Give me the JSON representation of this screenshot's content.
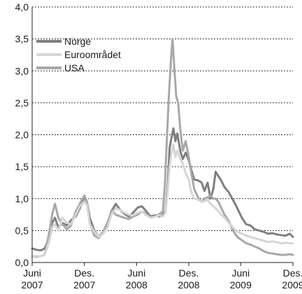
{
  "chart_data": {
    "type": "line",
    "ylim": [
      0,
      4.0
    ],
    "yticks": [
      {
        "value": 0.0,
        "label": "0,0"
      },
      {
        "value": 0.5,
        "label": "0,5"
      },
      {
        "value": 1.0,
        "label": "1,0"
      },
      {
        "value": 1.5,
        "label": "1,5"
      },
      {
        "value": 2.0,
        "label": "2,0"
      },
      {
        "value": 2.5,
        "label": "2,5"
      },
      {
        "value": 3.0,
        "label": "3,0"
      },
      {
        "value": 3.5,
        "label": "3,5"
      },
      {
        "value": 4.0,
        "label": "4,0"
      }
    ],
    "xlim": [
      "2007-06",
      "2009-12"
    ],
    "xticks": [
      {
        "value": "2007-06",
        "line1": "Juni",
        "line2": "2007"
      },
      {
        "value": "2007-12",
        "line1": "Des.",
        "line2": "2007"
      },
      {
        "value": "2008-06",
        "line1": "Juni",
        "line2": "2008"
      },
      {
        "value": "2008-12",
        "line1": "Des.",
        "line2": "2008"
      },
      {
        "value": "2009-06",
        "line1": "Juni",
        "line2": "2009"
      },
      {
        "value": "2009-12",
        "line1": "Des.",
        "line2": "2009"
      }
    ],
    "grid": "horizontal-dotted",
    "legend_position": "top-left",
    "series": [
      {
        "name": "Norge",
        "color": "#7f7f7f",
        "points": [
          [
            "2007-06-01",
            0.22
          ],
          [
            "2007-06-15",
            0.2
          ],
          [
            "2007-07-01",
            0.19
          ],
          [
            "2007-07-15",
            0.22
          ],
          [
            "2007-08-01",
            0.4
          ],
          [
            "2007-08-10",
            0.62
          ],
          [
            "2007-08-20",
            0.7
          ],
          [
            "2007-09-01",
            0.55
          ],
          [
            "2007-09-15",
            0.62
          ],
          [
            "2007-10-01",
            0.58
          ],
          [
            "2007-10-15",
            0.66
          ],
          [
            "2007-11-01",
            0.72
          ],
          [
            "2007-11-15",
            0.85
          ],
          [
            "2007-12-01",
            1.02
          ],
          [
            "2007-12-10",
            0.95
          ],
          [
            "2007-12-20",
            0.7
          ],
          [
            "2008-01-05",
            0.5
          ],
          [
            "2008-01-20",
            0.4
          ],
          [
            "2008-02-05",
            0.48
          ],
          [
            "2008-02-20",
            0.62
          ],
          [
            "2008-03-05",
            0.8
          ],
          [
            "2008-03-20",
            0.92
          ],
          [
            "2008-04-05",
            0.82
          ],
          [
            "2008-04-20",
            0.76
          ],
          [
            "2008-05-05",
            0.72
          ],
          [
            "2008-05-20",
            0.78
          ],
          [
            "2008-06-05",
            0.86
          ],
          [
            "2008-06-20",
            0.88
          ],
          [
            "2008-07-05",
            0.8
          ],
          [
            "2008-07-20",
            0.72
          ],
          [
            "2008-08-05",
            0.74
          ],
          [
            "2008-08-20",
            0.72
          ],
          [
            "2008-09-01",
            0.75
          ],
          [
            "2008-09-10",
            0.8
          ],
          [
            "2008-09-18",
            1.2
          ],
          [
            "2008-09-25",
            1.8
          ],
          [
            "2008-10-01",
            1.95
          ],
          [
            "2008-10-08",
            2.1
          ],
          [
            "2008-10-15",
            1.9
          ],
          [
            "2008-10-22",
            2.02
          ],
          [
            "2008-11-01",
            1.75
          ],
          [
            "2008-11-10",
            1.62
          ],
          [
            "2008-11-20",
            1.72
          ],
          [
            "2008-12-01",
            1.6
          ],
          [
            "2008-12-10",
            1.45
          ],
          [
            "2008-12-20",
            1.3
          ],
          [
            "2009-01-05",
            1.28
          ],
          [
            "2009-01-15",
            1.25
          ],
          [
            "2009-01-25",
            1.12
          ],
          [
            "2009-02-05",
            1.25
          ],
          [
            "2009-02-15",
            1.0
          ],
          [
            "2009-02-25",
            1.15
          ],
          [
            "2009-03-05",
            1.42
          ],
          [
            "2009-03-15",
            1.35
          ],
          [
            "2009-03-25",
            1.28
          ],
          [
            "2009-04-05",
            1.18
          ],
          [
            "2009-04-20",
            1.1
          ],
          [
            "2009-05-05",
            0.98
          ],
          [
            "2009-05-20",
            0.85
          ],
          [
            "2009-06-05",
            0.7
          ],
          [
            "2009-06-20",
            0.6
          ],
          [
            "2009-07-05",
            0.58
          ],
          [
            "2009-07-20",
            0.52
          ],
          [
            "2009-08-05",
            0.5
          ],
          [
            "2009-08-20",
            0.48
          ],
          [
            "2009-09-05",
            0.45
          ],
          [
            "2009-09-20",
            0.46
          ],
          [
            "2009-10-05",
            0.44
          ],
          [
            "2009-10-20",
            0.43
          ],
          [
            "2009-11-05",
            0.42
          ],
          [
            "2009-11-20",
            0.45
          ],
          [
            "2009-12-01",
            0.4
          ]
        ]
      },
      {
        "name": "Euroområdet",
        "color": "#d6d6d6",
        "points": [
          [
            "2007-06-01",
            0.1
          ],
          [
            "2007-06-15",
            0.1
          ],
          [
            "2007-07-01",
            0.1
          ],
          [
            "2007-07-15",
            0.12
          ],
          [
            "2007-08-01",
            0.35
          ],
          [
            "2007-08-10",
            0.55
          ],
          [
            "2007-08-20",
            0.6
          ],
          [
            "2007-09-01",
            0.5
          ],
          [
            "2007-09-15",
            0.7
          ],
          [
            "2007-10-01",
            0.62
          ],
          [
            "2007-10-15",
            0.6
          ],
          [
            "2007-11-01",
            0.75
          ],
          [
            "2007-11-15",
            0.88
          ],
          [
            "2007-12-01",
            0.95
          ],
          [
            "2007-12-10",
            0.9
          ],
          [
            "2007-12-20",
            0.6
          ],
          [
            "2008-01-05",
            0.48
          ],
          [
            "2008-01-20",
            0.4
          ],
          [
            "2008-02-05",
            0.45
          ],
          [
            "2008-02-20",
            0.55
          ],
          [
            "2008-03-05",
            0.75
          ],
          [
            "2008-03-20",
            0.85
          ],
          [
            "2008-04-05",
            0.82
          ],
          [
            "2008-04-20",
            0.78
          ],
          [
            "2008-05-05",
            0.75
          ],
          [
            "2008-05-20",
            0.74
          ],
          [
            "2008-06-05",
            0.78
          ],
          [
            "2008-06-20",
            0.8
          ],
          [
            "2008-07-05",
            0.74
          ],
          [
            "2008-07-20",
            0.7
          ],
          [
            "2008-08-05",
            0.72
          ],
          [
            "2008-08-20",
            0.74
          ],
          [
            "2008-09-01",
            0.72
          ],
          [
            "2008-09-10",
            0.78
          ],
          [
            "2008-09-18",
            1.1
          ],
          [
            "2008-09-25",
            1.5
          ],
          [
            "2008-10-01",
            1.7
          ],
          [
            "2008-10-08",
            1.85
          ],
          [
            "2008-10-15",
            1.65
          ],
          [
            "2008-10-22",
            1.75
          ],
          [
            "2008-11-01",
            1.62
          ],
          [
            "2008-11-10",
            1.55
          ],
          [
            "2008-11-20",
            1.4
          ],
          [
            "2008-12-01",
            1.3
          ],
          [
            "2008-12-10",
            1.1
          ],
          [
            "2008-12-20",
            1.0
          ],
          [
            "2009-01-05",
            0.98
          ],
          [
            "2009-01-15",
            0.95
          ],
          [
            "2009-01-25",
            0.96
          ],
          [
            "2009-02-05",
            0.98
          ],
          [
            "2009-02-15",
            0.92
          ],
          [
            "2009-02-25",
            0.88
          ],
          [
            "2009-03-05",
            0.85
          ],
          [
            "2009-03-15",
            0.8
          ],
          [
            "2009-03-25",
            0.75
          ],
          [
            "2009-04-05",
            0.7
          ],
          [
            "2009-04-20",
            0.62
          ],
          [
            "2009-05-05",
            0.55
          ],
          [
            "2009-05-20",
            0.48
          ],
          [
            "2009-06-05",
            0.45
          ],
          [
            "2009-06-20",
            0.42
          ],
          [
            "2009-07-05",
            0.4
          ],
          [
            "2009-07-20",
            0.38
          ],
          [
            "2009-08-05",
            0.36
          ],
          [
            "2009-08-20",
            0.34
          ],
          [
            "2009-09-05",
            0.32
          ],
          [
            "2009-09-20",
            0.33
          ],
          [
            "2009-10-05",
            0.32
          ],
          [
            "2009-10-20",
            0.3
          ],
          [
            "2009-11-05",
            0.31
          ],
          [
            "2009-11-20",
            0.3
          ],
          [
            "2009-12-01",
            0.3
          ]
        ]
      },
      {
        "name": "USA",
        "color": "#a8a8a8",
        "points": [
          [
            "2007-06-01",
            0.1
          ],
          [
            "2007-06-15",
            0.09
          ],
          [
            "2007-07-01",
            0.1
          ],
          [
            "2007-07-15",
            0.12
          ],
          [
            "2007-08-01",
            0.5
          ],
          [
            "2007-08-10",
            0.75
          ],
          [
            "2007-08-20",
            0.92
          ],
          [
            "2007-09-01",
            0.7
          ],
          [
            "2007-09-15",
            0.6
          ],
          [
            "2007-10-01",
            0.52
          ],
          [
            "2007-10-15",
            0.58
          ],
          [
            "2007-11-01",
            0.8
          ],
          [
            "2007-11-15",
            0.92
          ],
          [
            "2007-12-01",
            1.05
          ],
          [
            "2007-12-10",
            0.95
          ],
          [
            "2007-12-20",
            0.62
          ],
          [
            "2008-01-05",
            0.42
          ],
          [
            "2008-01-20",
            0.38
          ],
          [
            "2008-02-05",
            0.48
          ],
          [
            "2008-02-20",
            0.6
          ],
          [
            "2008-03-05",
            0.82
          ],
          [
            "2008-03-20",
            0.75
          ],
          [
            "2008-04-05",
            0.72
          ],
          [
            "2008-04-20",
            0.7
          ],
          [
            "2008-05-05",
            0.68
          ],
          [
            "2008-05-20",
            0.72
          ],
          [
            "2008-06-05",
            0.75
          ],
          [
            "2008-06-20",
            0.8
          ],
          [
            "2008-07-05",
            0.76
          ],
          [
            "2008-07-20",
            0.7
          ],
          [
            "2008-08-05",
            0.72
          ],
          [
            "2008-08-20",
            0.76
          ],
          [
            "2008-09-01",
            0.8
          ],
          [
            "2008-09-08",
            1.2
          ],
          [
            "2008-09-15",
            1.9
          ],
          [
            "2008-09-22",
            2.6
          ],
          [
            "2008-09-30",
            3.2
          ],
          [
            "2008-10-05",
            3.5
          ],
          [
            "2008-10-12",
            3.0
          ],
          [
            "2008-10-18",
            2.6
          ],
          [
            "2008-10-25",
            2.5
          ],
          [
            "2008-11-01",
            2.1
          ],
          [
            "2008-11-10",
            1.75
          ],
          [
            "2008-11-20",
            1.9
          ],
          [
            "2008-12-01",
            1.65
          ],
          [
            "2008-12-10",
            1.4
          ],
          [
            "2008-12-20",
            1.15
          ],
          [
            "2009-01-05",
            1.0
          ],
          [
            "2009-01-15",
            0.95
          ],
          [
            "2009-01-25",
            1.0
          ],
          [
            "2009-02-05",
            1.02
          ],
          [
            "2009-02-15",
            1.05
          ],
          [
            "2009-02-25",
            1.0
          ],
          [
            "2009-03-05",
            1.0
          ],
          [
            "2009-03-15",
            0.95
          ],
          [
            "2009-03-25",
            0.85
          ],
          [
            "2009-04-05",
            0.75
          ],
          [
            "2009-04-20",
            0.65
          ],
          [
            "2009-05-05",
            0.5
          ],
          [
            "2009-05-20",
            0.4
          ],
          [
            "2009-06-05",
            0.35
          ],
          [
            "2009-06-20",
            0.3
          ],
          [
            "2009-07-05",
            0.28
          ],
          [
            "2009-07-20",
            0.25
          ],
          [
            "2009-08-05",
            0.22
          ],
          [
            "2009-08-20",
            0.18
          ],
          [
            "2009-09-05",
            0.15
          ],
          [
            "2009-09-20",
            0.14
          ],
          [
            "2009-10-05",
            0.13
          ],
          [
            "2009-10-20",
            0.12
          ],
          [
            "2009-11-05",
            0.12
          ],
          [
            "2009-11-20",
            0.13
          ],
          [
            "2009-12-01",
            0.12
          ]
        ]
      }
    ]
  }
}
